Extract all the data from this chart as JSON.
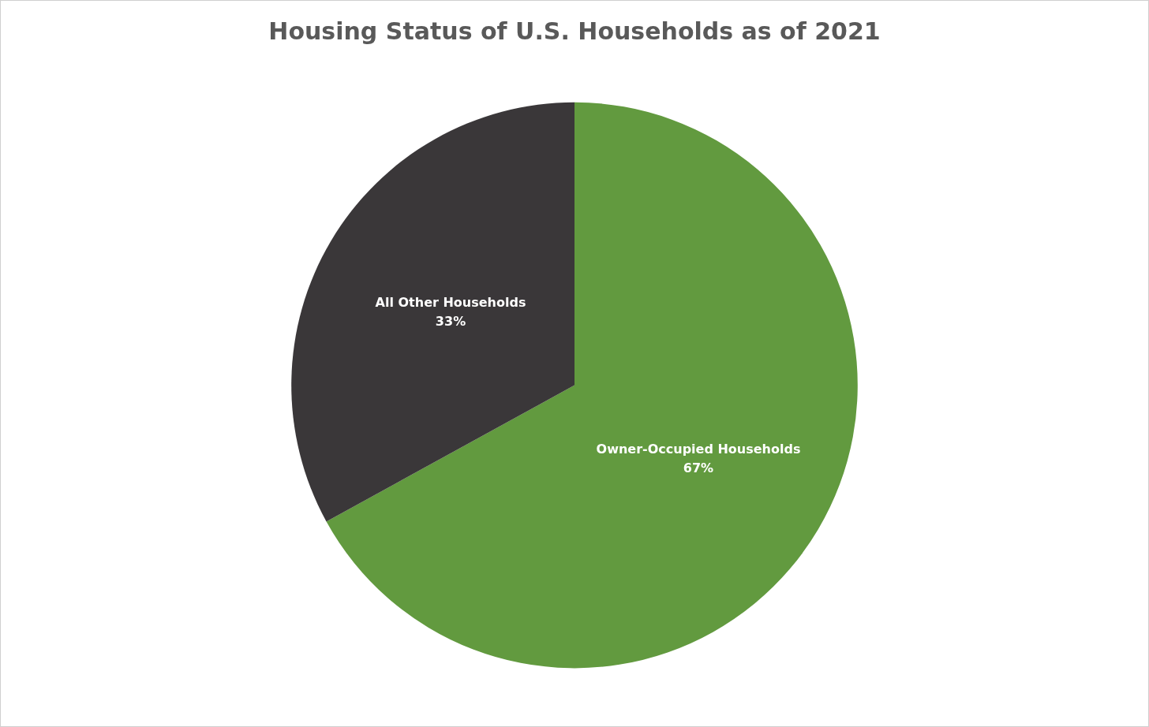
{
  "chart_data": {
    "type": "pie",
    "title": "Housing Status of U.S. Households as of 2021",
    "categories": [
      "Owner-Occupied Households",
      "All Other Households"
    ],
    "values": [
      67,
      33
    ],
    "colors": [
      "#629a3f",
      "#3a3739"
    ],
    "value_labels": [
      "67%",
      "33%"
    ],
    "legend": false
  }
}
